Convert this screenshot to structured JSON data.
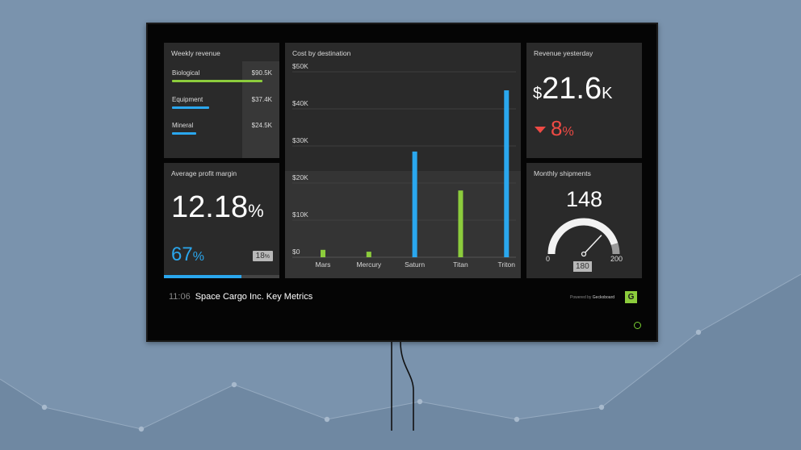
{
  "dashboard": {
    "time": "11:06",
    "title": "Space Cargo Inc. Key Metrics",
    "powered_prefix": "Powered by",
    "powered_brand": "Geckoboard",
    "logo_letter": "G"
  },
  "weekly_revenue": {
    "title": "Weekly revenue",
    "items": [
      {
        "label": "Biological",
        "value": "$90.5K",
        "fraction": 0.97,
        "color": "#8ccc3c"
      },
      {
        "label": "Equipment",
        "value": "$37.4K",
        "fraction": 0.4,
        "color": "#2aa7ee"
      },
      {
        "label": "Mineral",
        "value": "$24.5K",
        "fraction": 0.26,
        "color": "#2aa7ee"
      }
    ]
  },
  "cost_by_destination": {
    "title": "Cost by destination"
  },
  "chart_data": {
    "type": "bar",
    "title": "Cost by destination",
    "xlabel": "",
    "ylabel": "",
    "categories": [
      "Mars",
      "Mercury",
      "Saturn",
      "Titan",
      "Triton"
    ],
    "values": [
      2000,
      1500,
      28500,
      18000,
      45000
    ],
    "bar_colors": [
      "#8ccc3c",
      "#8ccc3c",
      "#2aa7ee",
      "#8ccc3c",
      "#2aa7ee"
    ],
    "ylim": [
      0,
      50000
    ],
    "yticks": [
      0,
      10000,
      20000,
      30000,
      40000,
      50000
    ],
    "ytick_labels": [
      "$0",
      "$10K",
      "$20K",
      "$30K",
      "$40K",
      "$50K"
    ],
    "grid": true
  },
  "revenue_yesterday": {
    "title": "Revenue yesterday",
    "currency": "$",
    "value": "21.6",
    "suffix": "K",
    "change": "8",
    "change_unit": "%",
    "change_direction": "down",
    "change_color": "#ee4a44"
  },
  "profit_margin": {
    "title": "Average profit margin",
    "value": "12.18",
    "unit": "%",
    "secondary": "67",
    "secondary_unit": "%",
    "secondary_fraction": 0.67,
    "target": "18",
    "target_unit": "%"
  },
  "shipments": {
    "title": "Monthly shipments",
    "value": "148",
    "gauge_min": "0",
    "gauge_max": "200",
    "target": "180",
    "value_num": 148,
    "min_num": 0,
    "max_num": 200,
    "target_num": 180
  },
  "colors": {
    "accent_green": "#8ccc3c",
    "accent_blue": "#2aa7ee",
    "negative_red": "#ee4a44"
  }
}
